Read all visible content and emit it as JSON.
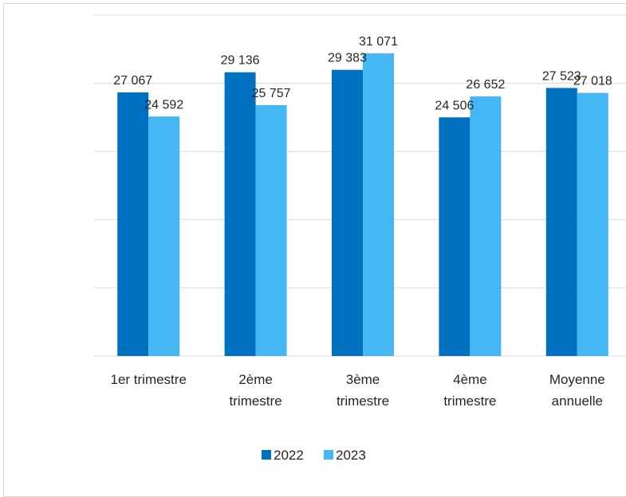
{
  "chart_data": {
    "type": "bar",
    "categories": [
      [
        "1er trimestre"
      ],
      [
        "2ème",
        "trimestre"
      ],
      [
        "3ème",
        "trimestre"
      ],
      [
        "4ème",
        "trimestre"
      ],
      [
        "Moyenne",
        "annuelle"
      ]
    ],
    "series": [
      {
        "name": "2022",
        "values": [
          27067,
          29136,
          29383,
          24506,
          27523
        ],
        "labels": [
          "27 067",
          "29 136",
          "29 383",
          "24 506",
          "27 523"
        ],
        "color": "#0070c0"
      },
      {
        "name": "2023",
        "values": [
          24592,
          25757,
          31071,
          26652,
          27018
        ],
        "labels": [
          "24 592",
          "25 757",
          "31 071",
          "26 652",
          "27 018"
        ],
        "color": "#45b7f5"
      }
    ],
    "ylim": [
      0,
      35000
    ],
    "y_gridlines": [
      0,
      7000,
      14000,
      21000,
      28000,
      35000
    ],
    "grid": true,
    "legend": "bottom-center",
    "title": "",
    "xlabel": "",
    "ylabel": ""
  }
}
